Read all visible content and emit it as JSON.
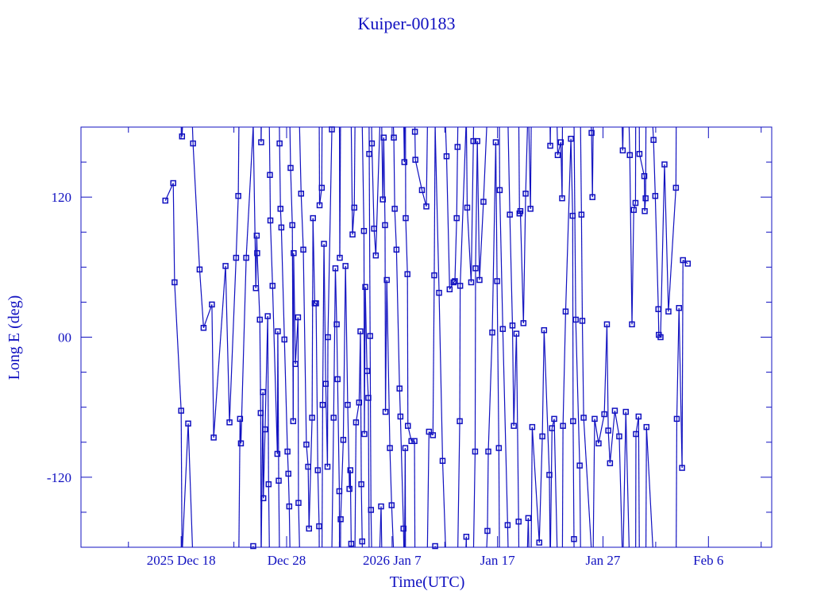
{
  "chart_data": {
    "type": "line",
    "title": "Kuiper-00183",
    "xlabel": "Time(UTC)",
    "ylabel": "Long E (deg)",
    "xlim": [
      "2025-12-08T12",
      "2026-02-12T00"
    ],
    "ylim": [
      -180,
      180
    ],
    "x_ticks": [
      {
        "date": "2025-12-18T00",
        "label": "2025 Dec 18"
      },
      {
        "date": "2025-12-28T00",
        "label": "Dec 28"
      },
      {
        "date": "2026-01-07T00",
        "label": "2026 Jan  7"
      },
      {
        "date": "2026-01-17T00",
        "label": "Jan 17"
      },
      {
        "date": "2026-01-27T00",
        "label": "Jan 27"
      },
      {
        "date": "2026-02-06T00",
        "label": "Feb  6"
      }
    ],
    "y_ticks": [
      {
        "value": 120,
        "label": "120"
      },
      {
        "value": 0,
        "label": "00"
      },
      {
        "value": -120,
        "label": "-120"
      }
    ],
    "grid": false,
    "wrap_longitude": true,
    "color": "#1010c0",
    "marker": "square",
    "points": [
      [
        "2025-12-16T12",
        117
      ],
      [
        "2025-12-17T06",
        132
      ],
      [
        "2025-12-17T09",
        47
      ],
      [
        "2025-12-18T00",
        -63
      ],
      [
        "2025-12-18T02",
        172
      ],
      [
        "2025-12-18T16",
        -74
      ],
      [
        "2025-12-19T03",
        166
      ],
      [
        "2025-12-19T18",
        58
      ],
      [
        "2025-12-20T03",
        8
      ],
      [
        "2025-12-20T22",
        28
      ],
      [
        "2025-12-21T02",
        -86
      ],
      [
        "2025-12-22T05",
        61
      ],
      [
        "2025-12-22T14",
        -73
      ],
      [
        "2025-12-23T05",
        68
      ],
      [
        "2025-12-23T10",
        121
      ],
      [
        "2025-12-23T14",
        -70
      ],
      [
        "2025-12-23T16",
        -91
      ],
      [
        "2025-12-24T04",
        68
      ],
      [
        "2025-12-24T20",
        -179
      ],
      [
        "2025-12-25T02",
        42
      ],
      [
        "2025-12-25T04",
        87
      ],
      [
        "2025-12-25T05",
        72
      ],
      [
        "2025-12-25T11",
        15
      ],
      [
        "2025-12-25T13",
        -65
      ],
      [
        "2025-12-25T14",
        167
      ],
      [
        "2025-12-25T18",
        -47
      ],
      [
        "2025-12-25T19",
        -138
      ],
      [
        "2025-12-25T23",
        -79
      ],
      [
        "2025-12-26T05",
        18
      ],
      [
        "2025-12-26T07",
        -126
      ],
      [
        "2025-12-26T10",
        139
      ],
      [
        "2025-12-26T11",
        100
      ],
      [
        "2025-12-26T16",
        44
      ],
      [
        "2025-12-27T03",
        -100
      ],
      [
        "2025-12-27T04",
        5
      ],
      [
        "2025-12-27T06",
        -123
      ],
      [
        "2025-12-27T08",
        166
      ],
      [
        "2025-12-27T10",
        110
      ],
      [
        "2025-12-27T12",
        94
      ],
      [
        "2025-12-27T19",
        -2
      ],
      [
        "2025-12-28T02",
        -98
      ],
      [
        "2025-12-28T04",
        -117
      ],
      [
        "2025-12-28T06",
        -145
      ],
      [
        "2025-12-28T09",
        145
      ],
      [
        "2025-12-28T13",
        96
      ],
      [
        "2025-12-28T15",
        -72
      ],
      [
        "2025-12-28T16",
        72
      ],
      [
        "2025-12-28T20",
        -23
      ],
      [
        "2025-12-29T02",
        17
      ],
      [
        "2025-12-29T03",
        -142
      ],
      [
        "2025-12-29T09",
        123
      ],
      [
        "2025-12-29T14",
        75
      ],
      [
        "2025-12-29T21",
        -92
      ],
      [
        "2025-12-30T01",
        -111
      ],
      [
        "2025-12-30T03",
        -164
      ],
      [
        "2025-12-30T10",
        -69
      ],
      [
        "2025-12-30T12",
        102
      ],
      [
        "2025-12-30T16",
        29
      ],
      [
        "2025-12-30T19",
        29
      ],
      [
        "2025-12-30T23",
        -114
      ],
      [
        "2025-12-31T02",
        -162
      ],
      [
        "2025-12-31T03",
        113
      ],
      [
        "2025-12-31T08",
        128
      ],
      [
        "2025-12-31T10",
        -58
      ],
      [
        "2025-12-31T13",
        80
      ],
      [
        "2025-12-31T17",
        -40
      ],
      [
        "2025-12-31T21",
        -111
      ],
      [
        "2025-12-31T22",
        0
      ],
      [
        "2026-01-01T07",
        178
      ],
      [
        "2026-01-01T11",
        -69
      ],
      [
        "2026-01-01T15",
        59
      ],
      [
        "2026-01-01T18",
        11
      ],
      [
        "2026-01-01T20",
        -36
      ],
      [
        "2026-01-02T00",
        -132
      ],
      [
        "2026-01-02T01",
        68
      ],
      [
        "2026-01-02T03",
        -156
      ],
      [
        "2026-01-02T09",
        -88
      ],
      [
        "2026-01-02T14",
        61
      ],
      [
        "2026-01-02T19",
        -58
      ],
      [
        "2026-01-02T23",
        -130
      ],
      [
        "2026-01-03T01",
        -114
      ],
      [
        "2026-01-03T03",
        -177
      ],
      [
        "2026-01-03T06",
        88
      ],
      [
        "2026-01-03T10",
        111
      ],
      [
        "2026-01-03T14",
        -73
      ],
      [
        "2026-01-03T21",
        -56
      ],
      [
        "2026-01-04T00",
        5
      ],
      [
        "2026-01-04T02",
        -126
      ],
      [
        "2026-01-04T04",
        -175
      ],
      [
        "2026-01-04T08",
        91
      ],
      [
        "2026-01-04T09",
        -83
      ],
      [
        "2026-01-04T11",
        43
      ],
      [
        "2026-01-04T15",
        -29
      ],
      [
        "2026-01-04T18",
        -52
      ],
      [
        "2026-01-04T20",
        157
      ],
      [
        "2026-01-04T22",
        1
      ],
      [
        "2026-01-05T00",
        -148
      ],
      [
        "2026-01-05T02",
        166
      ],
      [
        "2026-01-05T07",
        93
      ],
      [
        "2026-01-05T11",
        70
      ],
      [
        "2026-01-05T23",
        -145
      ],
      [
        "2026-01-06T03",
        118
      ],
      [
        "2026-01-06T05",
        171
      ],
      [
        "2026-01-06T08",
        96
      ],
      [
        "2026-01-06T09",
        -64
      ],
      [
        "2026-01-06T12",
        49
      ],
      [
        "2026-01-06T19",
        -95
      ],
      [
        "2026-01-06T23",
        -144
      ],
      [
        "2026-01-07T04",
        171
      ],
      [
        "2026-01-07T06",
        110
      ],
      [
        "2026-01-07T10",
        75
      ],
      [
        "2026-01-07T17",
        -44
      ],
      [
        "2026-01-07T19",
        -68
      ],
      [
        "2026-01-08T02",
        -164
      ],
      [
        "2026-01-08T04",
        150
      ],
      [
        "2026-01-08T06",
        -95
      ],
      [
        "2026-01-08T07",
        102
      ],
      [
        "2026-01-08T11",
        54
      ],
      [
        "2026-01-08T12",
        -76
      ],
      [
        "2026-01-08T20",
        -89
      ],
      [
        "2026-01-09T03",
        -89
      ],
      [
        "2026-01-09T04",
        176
      ],
      [
        "2026-01-09T05",
        152
      ],
      [
        "2026-01-09T20",
        126
      ],
      [
        "2026-01-10T06",
        112
      ],
      [
        "2026-01-10T12",
        -81
      ],
      [
        "2026-01-10T21",
        -84
      ],
      [
        "2026-01-11T00",
        53
      ],
      [
        "2026-01-11T02",
        -179
      ],
      [
        "2026-01-11T11",
        38
      ],
      [
        "2026-01-11T19",
        -106
      ],
      [
        "2026-01-12T04",
        155
      ],
      [
        "2026-01-12T11",
        41
      ],
      [
        "2026-01-12T20",
        47
      ],
      [
        "2026-01-12T23",
        48
      ],
      [
        "2026-01-13T03",
        102
      ],
      [
        "2026-01-13T05",
        163
      ],
      [
        "2026-01-13T10",
        -72
      ],
      [
        "2026-01-13T11",
        44
      ],
      [
        "2026-01-14T01",
        -171
      ],
      [
        "2026-01-14T03",
        111
      ],
      [
        "2026-01-14T12",
        47
      ],
      [
        "2026-01-14T17",
        168
      ],
      [
        "2026-01-14T21",
        -98
      ],
      [
        "2026-01-14T22",
        59
      ],
      [
        "2026-01-15T02",
        168
      ],
      [
        "2026-01-15T07",
        49
      ],
      [
        "2026-01-15T16",
        116
      ],
      [
        "2026-01-16T01",
        -166
      ],
      [
        "2026-01-16T03",
        -98
      ],
      [
        "2026-01-16T12",
        4
      ],
      [
        "2026-01-16T20",
        167
      ],
      [
        "2026-01-16T23",
        48
      ],
      [
        "2026-01-17T03",
        -95
      ],
      [
        "2026-01-17T05",
        126
      ],
      [
        "2026-01-17T12",
        7
      ],
      [
        "2026-01-17T23",
        -161
      ],
      [
        "2026-01-18T04",
        105
      ],
      [
        "2026-01-18T10",
        10
      ],
      [
        "2026-01-18T13",
        -76
      ],
      [
        "2026-01-18T19",
        3
      ],
      [
        "2026-01-19T00",
        -158
      ],
      [
        "2026-01-19T02",
        106
      ],
      [
        "2026-01-19T04",
        108
      ],
      [
        "2026-01-19T11",
        12
      ],
      [
        "2026-01-19T16",
        123
      ],
      [
        "2026-01-19T22",
        -155
      ],
      [
        "2026-01-20T03",
        110
      ],
      [
        "2026-01-20T07",
        -77
      ],
      [
        "2026-01-20T23",
        -176
      ],
      [
        "2026-01-21T06",
        -85
      ],
      [
        "2026-01-21T10",
        6
      ],
      [
        "2026-01-21T22",
        -118
      ],
      [
        "2026-01-22T00",
        164
      ],
      [
        "2026-01-22T04",
        -78
      ],
      [
        "2026-01-22T09",
        -70
      ],
      [
        "2026-01-22T17",
        156
      ],
      [
        "2026-01-23T00",
        167
      ],
      [
        "2026-01-23T03",
        119
      ],
      [
        "2026-01-23T05",
        -76
      ],
      [
        "2026-01-23T11",
        22
      ],
      [
        "2026-01-23T23",
        170
      ],
      [
        "2026-01-24T03",
        104
      ],
      [
        "2026-01-24T04",
        -72
      ],
      [
        "2026-01-24T06",
        -173
      ],
      [
        "2026-01-24T10",
        15
      ],
      [
        "2026-01-24T19",
        -110
      ],
      [
        "2026-01-24T23",
        105
      ],
      [
        "2026-01-25T01",
        14
      ],
      [
        "2026-01-25T04",
        -69
      ],
      [
        "2026-01-25T22",
        175
      ],
      [
        "2026-01-26T00",
        120
      ],
      [
        "2026-01-26T05",
        -70
      ],
      [
        "2026-01-26T14",
        -91
      ],
      [
        "2026-01-27T03",
        -66
      ],
      [
        "2026-01-27T09",
        11
      ],
      [
        "2026-01-27T12",
        -80
      ],
      [
        "2026-01-27T16",
        -108
      ],
      [
        "2026-01-28T03",
        -63
      ],
      [
        "2026-01-28T13",
        -85
      ],
      [
        "2026-01-28T21",
        160
      ],
      [
        "2026-01-29T04",
        -64
      ],
      [
        "2026-01-29T13",
        156
      ],
      [
        "2026-01-29T18",
        11
      ],
      [
        "2026-01-29T22",
        109
      ],
      [
        "2026-01-30T02",
        115
      ],
      [
        "2026-01-30T03",
        -83
      ],
      [
        "2026-01-30T09",
        -68
      ],
      [
        "2026-01-30T11",
        157
      ],
      [
        "2026-01-30T22",
        138
      ],
      [
        "2026-01-30T23",
        108
      ],
      [
        "2026-01-31T01",
        119
      ],
      [
        "2026-01-31T03",
        -77
      ],
      [
        "2026-01-31T19",
        169
      ],
      [
        "2026-01-31T23",
        121
      ],
      [
        "2026-02-01T06",
        24
      ],
      [
        "2026-02-01T07",
        2
      ],
      [
        "2026-02-01T11",
        0
      ],
      [
        "2026-02-01T20",
        148
      ],
      [
        "2026-02-02T05",
        22
      ],
      [
        "2026-02-02T22",
        128
      ],
      [
        "2026-02-03T00",
        -70
      ],
      [
        "2026-02-03T05",
        25
      ],
      [
        "2026-02-03T12",
        -112
      ],
      [
        "2026-02-03T14",
        66
      ],
      [
        "2026-02-04T01",
        63
      ]
    ]
  }
}
